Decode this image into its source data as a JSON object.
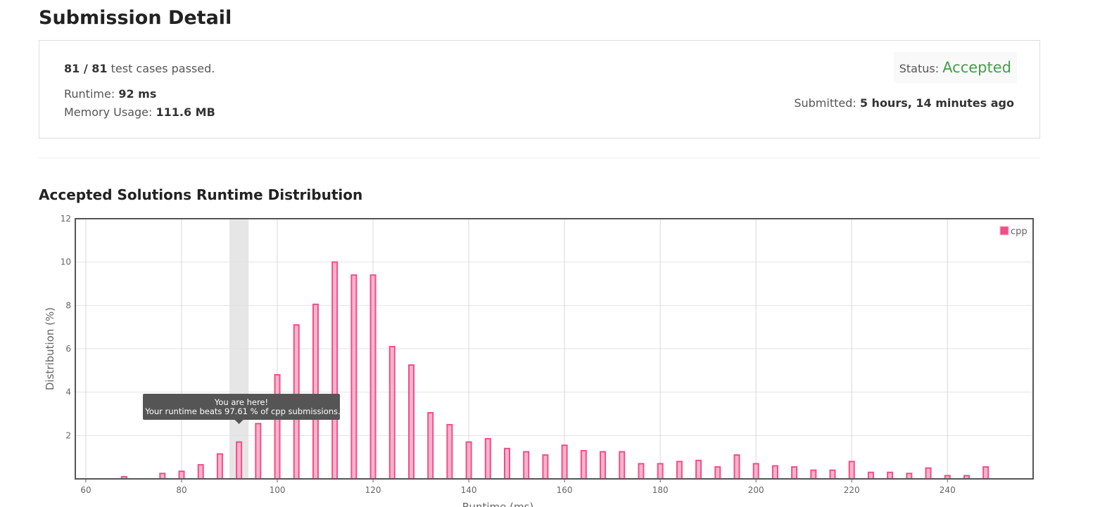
{
  "header": {
    "title": "Submission Detail"
  },
  "summary": {
    "passed": "81 / 81",
    "passed_text": "test cases passed.",
    "runtime_label": "Runtime:",
    "runtime": "92 ms",
    "memory_label": "Memory Usage:",
    "memory": "111.6 MB",
    "status_label": "Status:",
    "status": "Accepted",
    "submitted_label": "Submitted:",
    "submitted": "5 hours, 14 minutes ago"
  },
  "chart_data": {
    "type": "bar",
    "title": "Accepted Solutions Runtime Distribution",
    "x_label": "Runtime (ms)",
    "y_label": "Distribution (%)",
    "x": [
      68,
      76,
      80,
      84,
      88,
      92,
      96,
      100,
      104,
      108,
      112,
      116,
      120,
      124,
      128,
      132,
      136,
      140,
      144,
      148,
      152,
      156,
      160,
      164,
      168,
      172,
      176,
      180,
      184,
      188,
      192,
      196,
      200,
      204,
      208,
      212,
      216,
      220,
      224,
      228,
      232,
      236,
      240,
      244,
      248
    ],
    "series": [
      {
        "name": "cpp",
        "color": "#ef4f88",
        "values": [
          0.1,
          0.25,
          0.35,
          0.65,
          1.15,
          1.7,
          2.55,
          4.8,
          7.1,
          8.05,
          10.0,
          9.4,
          9.4,
          6.1,
          5.25,
          3.05,
          2.5,
          1.7,
          1.85,
          1.4,
          1.25,
          1.1,
          1.55,
          1.3,
          1.25,
          1.25,
          0.7,
          0.7,
          0.8,
          0.85,
          0.55,
          1.1,
          0.7,
          0.6,
          0.55,
          0.4,
          0.4,
          0.8,
          0.3,
          0.3,
          0.25,
          0.5,
          0.15,
          0.15,
          0.55
        ]
      }
    ],
    "xlim": [
      57.8,
      257.9
    ],
    "xticks": [
      60,
      80,
      100,
      120,
      140,
      160,
      180,
      200,
      220,
      240
    ],
    "ylim": [
      0,
      12
    ],
    "yticks": [
      2,
      4,
      6,
      8,
      10,
      12
    ],
    "grid": true,
    "legend": "top-right",
    "highlight": {
      "from": 90,
      "to": 94
    },
    "tooltip": {
      "line1": "You are here!",
      "line2": "Your runtime beats 97.61 % of cpp submissions."
    }
  }
}
